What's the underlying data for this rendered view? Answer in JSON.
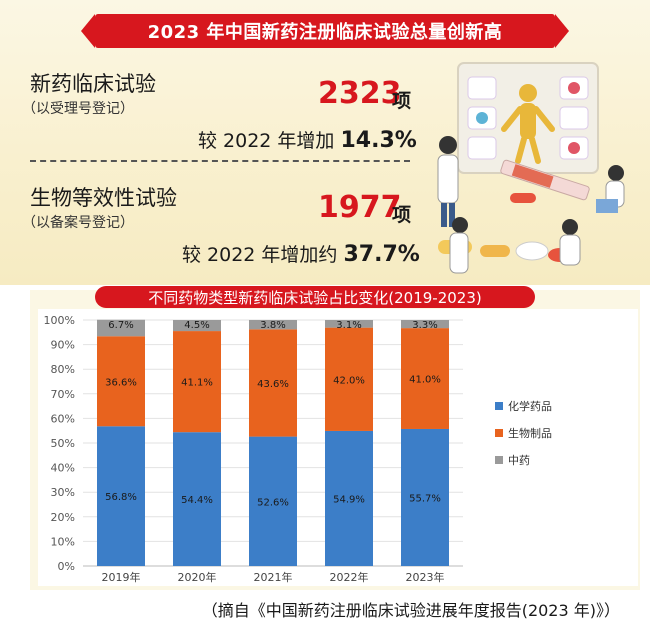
{
  "header": {
    "title": "2023 年中国新药注册临床试验总量创新高"
  },
  "stats": [
    {
      "title": "新药临床试验",
      "subtitle": "（以受理号登记）",
      "number": "2323",
      "unit": "项",
      "increase_prefix": "较 2022 年增加",
      "increase_value": "14.3%"
    },
    {
      "title": "生物等效性试验",
      "subtitle": "（以备案号登记）",
      "number": "1977",
      "unit": "项",
      "increase_prefix": "较 2022 年增加约",
      "increase_value": "37.7%"
    }
  ],
  "chart_data": {
    "type": "bar",
    "stacked": true,
    "title": "不同药物类型新药临床试验占比变化(2019-2023)",
    "categories": [
      "2019年",
      "2020年",
      "2021年",
      "2022年",
      "2023年"
    ],
    "series": [
      {
        "name": "化学药品",
        "values": [
          56.8,
          54.4,
          52.6,
          54.9,
          55.7
        ],
        "labels": [
          "56.8%",
          "54.4%",
          "52.6%",
          "54.9%",
          "55.7%"
        ],
        "color": "#3c7ec8"
      },
      {
        "name": "生物制品",
        "values": [
          36.6,
          41.1,
          43.6,
          42.0,
          41.0
        ],
        "labels": [
          "36.6%",
          "41.1%",
          "43.6%",
          "42.0%",
          "41.0%"
        ],
        "color": "#e8631e"
      },
      {
        "name": "中药",
        "values": [
          6.7,
          4.5,
          3.8,
          3.1,
          3.3
        ],
        "labels": [
          "6.7%",
          "4.5%",
          "3.8%",
          "3.1%",
          "3.3%"
        ],
        "color": "#9a9a9a"
      }
    ],
    "yticks": [
      "0%",
      "10%",
      "20%",
      "30%",
      "40%",
      "50%",
      "60%",
      "70%",
      "80%",
      "90%",
      "100%"
    ],
    "ylim": [
      0,
      100
    ],
    "legend_position": "right"
  },
  "source": "（摘自《中国新药注册临床试验进展年度报告(2023 年)》）"
}
